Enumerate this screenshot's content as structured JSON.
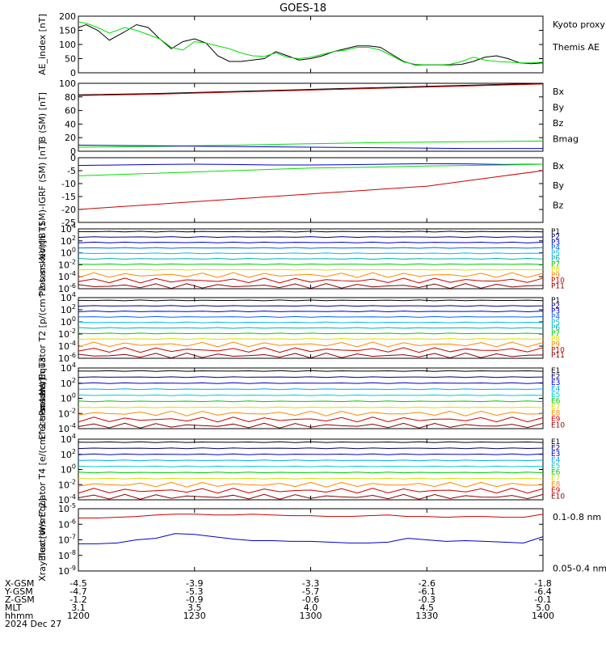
{
  "title": "GOES-18",
  "colors": {
    "black": "#000000",
    "green": "#00e000",
    "blue": "#0000cc",
    "red": "#cc0000",
    "navy": "#000080",
    "teal": "#008080",
    "cyan": "#00cccc",
    "lime": "#00d000",
    "yellow": "#dddd00",
    "orange": "#ff8800",
    "brown": "#a00000",
    "sky": "#00aaff",
    "darkred": "#8b0000"
  },
  "x_axis": {
    "ticks": [
      "1200",
      "1230",
      "1300",
      "1330",
      "1400"
    ],
    "rows": [
      {
        "label": "X-GSM",
        "values": [
          "-4.5",
          "-3.9",
          "-3.3",
          "-2.6",
          "-1.8"
        ]
      },
      {
        "label": "Y-GSM",
        "values": [
          "-4.7",
          "-5.3",
          "-5.7",
          "-6.1",
          "-6.4"
        ]
      },
      {
        "label": "Z-GSM",
        "values": [
          "-1.2",
          "-0.9",
          "-0.6",
          "-0.3",
          "-0.1"
        ]
      },
      {
        "label": "MLT",
        "values": [
          "3.1",
          "3.5",
          "4.0",
          "4.5",
          "5.0"
        ]
      },
      {
        "label": "hhmm",
        "values": [
          "1200",
          "1230",
          "1300",
          "1330",
          "1400"
        ]
      }
    ],
    "date": "2024 Dec 27"
  },
  "chart_data": [
    {
      "type": "line",
      "ylabel": "AE_index [nT]",
      "ylim": [
        0,
        200
      ],
      "yticks": [
        "0",
        "50",
        "100",
        "150",
        "200"
      ],
      "legend": [
        {
          "name": "Kyoto proxy AE",
          "color": "#00e000"
        },
        {
          "name": "Themis AE",
          "color": "#000000"
        }
      ],
      "x": [
        0,
        2,
        5,
        8,
        12,
        15,
        18,
        21,
        24,
        27,
        30,
        33,
        36,
        39,
        42,
        45,
        48,
        51,
        54,
        57,
        60,
        63,
        66,
        69,
        72,
        75,
        78,
        81,
        84,
        87,
        90,
        93,
        96,
        99,
        102,
        105,
        108,
        111,
        114,
        117,
        120
      ],
      "series": [
        {
          "name": "Themis AE",
          "color": "#000000",
          "values": [
            160,
            170,
            150,
            115,
            145,
            170,
            160,
            120,
            85,
            110,
            120,
            105,
            60,
            40,
            40,
            45,
            50,
            75,
            60,
            45,
            50,
            60,
            75,
            85,
            95,
            95,
            90,
            65,
            40,
            28,
            28,
            28,
            28,
            30,
            40,
            55,
            60,
            50,
            35,
            32,
            35
          ]
        },
        {
          "name": "Kyoto proxy AE",
          "color": "#00e000",
          "values": [
            180,
            175,
            160,
            140,
            160,
            150,
            135,
            120,
            90,
            80,
            110,
            105,
            95,
            85,
            70,
            60,
            58,
            70,
            55,
            50,
            55,
            65,
            75,
            80,
            90,
            90,
            80,
            60,
            38,
            30,
            28,
            28,
            30,
            40,
            55,
            45,
            40,
            38,
            35,
            35,
            38
          ]
        }
      ]
    },
    {
      "type": "line",
      "ylabel": "B (SM) [nT]",
      "ylim": [
        0,
        100
      ],
      "yticks": [
        "0",
        "20",
        "40",
        "60",
        "80",
        "100"
      ],
      "legend": [
        {
          "name": "Bx",
          "color": "#0000cc"
        },
        {
          "name": "By",
          "color": "#00e000"
        },
        {
          "name": "Bz",
          "color": "#cc0000"
        },
        {
          "name": "Bmag",
          "color": "#000000"
        }
      ],
      "x": [
        0,
        20,
        40,
        60,
        80,
        100,
        120
      ],
      "series": [
        {
          "name": "Bmag",
          "color": "#000000",
          "values": [
            83,
            85,
            88,
            91,
            94,
            97,
            100
          ]
        },
        {
          "name": "Bz",
          "color": "#cc0000",
          "values": [
            82,
            84,
            87,
            90,
            93,
            96,
            99
          ]
        },
        {
          "name": "By",
          "color": "#00e000",
          "values": [
            6,
            7,
            9,
            11,
            13,
            14,
            15
          ]
        },
        {
          "name": "Bx",
          "color": "#0000cc",
          "values": [
            9,
            8,
            7,
            6,
            5,
            4,
            4
          ]
        }
      ]
    },
    {
      "type": "line",
      "ylabel": "B (SM)-IGRF (SM) [nT]",
      "ylim": [
        -25,
        0
      ],
      "yticks": [
        "-25",
        "-20",
        "-15",
        "-10",
        "-5",
        "0"
      ],
      "legend": [
        {
          "name": "Bx",
          "color": "#0000cc"
        },
        {
          "name": "By",
          "color": "#00e000"
        },
        {
          "name": "Bz",
          "color": "#cc0000"
        }
      ],
      "x": [
        0,
        10,
        20,
        30,
        40,
        50,
        60,
        70,
        80,
        90,
        100,
        110,
        120
      ],
      "series": [
        {
          "name": "Bx",
          "color": "#0000cc",
          "values": [
            -3,
            -2.8,
            -2.6,
            -2.5,
            -2.6,
            -2.8,
            -2.8,
            -2.7,
            -2.5,
            -2.3,
            -2.4,
            -2.6,
            -2.5
          ]
        },
        {
          "name": "By",
          "color": "#00e000",
          "values": [
            -7,
            -6.5,
            -6,
            -5.5,
            -5,
            -4.5,
            -4,
            -3.8,
            -3.5,
            -3.2,
            -3,
            -2.8,
            -2.5
          ]
        },
        {
          "name": "Bz",
          "color": "#cc0000",
          "values": [
            -20,
            -19,
            -18,
            -17,
            -16,
            -15,
            -14,
            -13,
            -12,
            -11,
            -9,
            -7,
            -5
          ]
        }
      ]
    },
    {
      "type": "line",
      "ylabel": "Protons North T1",
      "log": true,
      "ylim": [
        -6,
        4
      ],
      "yticks": [
        "10^-6",
        "10^-4",
        "10^-2",
        "10^0",
        "10^2",
        "10^4"
      ],
      "legend_labels": [
        "P1",
        "P2",
        "P3",
        "P4",
        "P5",
        "P6",
        "P7",
        "P8",
        "P9",
        "P10",
        "P11"
      ]
    },
    {
      "type": "line",
      "ylabel": "Protons Equator T2 [p/(cm^2-s-sr-keV)]",
      "log": true,
      "ylim": [
        -6,
        4
      ],
      "yticks": [
        "10^-6",
        "10^-4",
        "10^-2",
        "10^0",
        "10^2",
        "10^4"
      ],
      "legend_labels": [
        "P1",
        "P2",
        "P3",
        "P4",
        "P5",
        "P6",
        "P7",
        "P8",
        "P9",
        "P10",
        "P11"
      ]
    },
    {
      "type": "line",
      "ylabel": "Electrons North T3",
      "log": true,
      "ylim": [
        -4,
        4
      ],
      "yticks": [
        "10^-4",
        "10^-2",
        "10^0",
        "10^2",
        "10^4"
      ],
      "legend_labels": [
        "E1",
        "E2",
        "E3",
        "E4",
        "E5",
        "E6",
        "E7",
        "E8",
        "E9",
        "E10"
      ]
    },
    {
      "type": "line",
      "ylabel": "Electrons Equator T4 [e/(cm^2-s-sr-keV)]",
      "log": true,
      "ylim": [
        -4,
        4
      ],
      "yticks": [
        "10^-4",
        "10^-2",
        "10^0",
        "10^2",
        "10^4"
      ],
      "legend_labels": [
        "E1",
        "E2",
        "E3",
        "E4",
        "E5",
        "E6",
        "E7",
        "E8",
        "E9",
        "E10"
      ]
    },
    {
      "type": "line",
      "ylabel": "Xray flux [W/m^2]",
      "log": true,
      "ylim": [
        -9,
        -5
      ],
      "yticks": [
        "10^-9",
        "10^-8",
        "10^-7",
        "10^-6",
        "10^-5"
      ],
      "legend": [
        {
          "name": "0.1-0.8 nm",
          "color": "#cc0000"
        },
        {
          "name": "0.05-0.4 nm",
          "color": "#0000cc"
        }
      ],
      "x": [
        0,
        5,
        10,
        15,
        20,
        25,
        30,
        35,
        40,
        45,
        50,
        55,
        60,
        65,
        70,
        75,
        80,
        85,
        90,
        95,
        100,
        105,
        110,
        115,
        120
      ],
      "series": [
        {
          "name": "0.1-0.8 nm",
          "color": "#cc0000",
          "values": [
            -5.6,
            -5.6,
            -5.55,
            -5.5,
            -5.4,
            -5.35,
            -5.35,
            -5.4,
            -5.4,
            -5.35,
            -5.4,
            -5.45,
            -5.45,
            -5.5,
            -5.5,
            -5.45,
            -5.4,
            -5.5,
            -5.5,
            -5.55,
            -5.5,
            -5.5,
            -5.55,
            -5.55,
            -5.35
          ]
        },
        {
          "name": "0.05-0.4 nm",
          "color": "#0000cc",
          "values": [
            -7.25,
            -7.25,
            -7.2,
            -7.0,
            -6.9,
            -6.6,
            -6.65,
            -6.8,
            -6.95,
            -7.05,
            -7.05,
            -7.1,
            -7.1,
            -7.15,
            -7.2,
            -7.2,
            -7.15,
            -6.9,
            -7.0,
            -7.1,
            -7.05,
            -7.1,
            -7.15,
            -7.2,
            -6.8
          ]
        }
      ]
    }
  ]
}
